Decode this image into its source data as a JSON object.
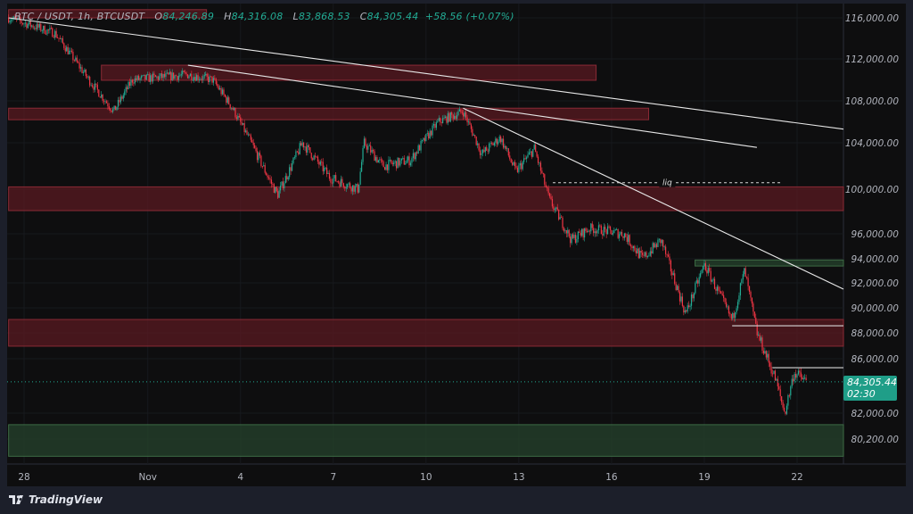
{
  "header": {
    "symbol": "BTC / USDT, 1h, BTCUSDT",
    "open_label": "O",
    "open": "84,246.89",
    "high_label": "H",
    "high": "84,316.08",
    "low_label": "L",
    "low": "83,868.53",
    "close_label": "C",
    "close": "84,305.44",
    "change": "+58.56 (+0.07%)"
  },
  "last_price": {
    "value": "84,305.44",
    "countdown": "02:30"
  },
  "brand": "TradingView",
  "colors": {
    "up": "#22ab94",
    "down": "#f23645",
    "zone_red": "#5a1a22",
    "zone_green": "#24402a",
    "tag": "#1f9e88"
  },
  "chart_data": {
    "type": "candlestick",
    "title": "BTC / USDT, 1h",
    "x_unit": "days since Oct 28",
    "x_ticks": [
      {
        "label": "28",
        "day": 0
      },
      {
        "label": "Nov",
        "day": 4
      },
      {
        "label": "4",
        "day": 7
      },
      {
        "label": "7",
        "day": 10
      },
      {
        "label": "10",
        "day": 13
      },
      {
        "label": "13",
        "day": 16
      },
      {
        "label": "16",
        "day": 19
      },
      {
        "label": "19",
        "day": 22
      },
      {
        "label": "22",
        "day": 25
      }
    ],
    "y_ticks": [
      {
        "label": "116,000.00",
        "v": 116000
      },
      {
        "label": "112,000.00",
        "v": 112000
      },
      {
        "label": "108,000.00",
        "v": 108000
      },
      {
        "label": "104,000.00",
        "v": 104000
      },
      {
        "label": "100,000.00",
        "v": 100000
      },
      {
        "label": "96,000.00",
        "v": 96000
      },
      {
        "label": "94,000.00",
        "v": 94000
      },
      {
        "label": "92,000.00",
        "v": 92000
      },
      {
        "label": "90,000.00",
        "v": 90000
      },
      {
        "label": "88,000.00",
        "v": 88000
      },
      {
        "label": "86,000.00",
        "v": 86000
      },
      {
        "label": "82,000.00",
        "v": 82000
      },
      {
        "label": "80,200.00",
        "v": 80200
      }
    ],
    "price_path": [
      [
        -0.5,
        116000
      ],
      [
        1.0,
        114500
      ],
      [
        2.1,
        110000
      ],
      [
        2.9,
        107000
      ],
      [
        3.5,
        110000
      ],
      [
        5.3,
        110500
      ],
      [
        6.1,
        110000
      ],
      [
        6.7,
        107500
      ],
      [
        7.9,
        101000
      ],
      [
        8.2,
        99500
      ],
      [
        9.0,
        104000
      ],
      [
        9.9,
        101000
      ],
      [
        10.8,
        100000
      ],
      [
        11.0,
        104000
      ],
      [
        11.6,
        102000
      ],
      [
        12.5,
        102500
      ],
      [
        13.4,
        106000
      ],
      [
        14.2,
        107000
      ],
      [
        14.8,
        103000
      ],
      [
        15.4,
        104500
      ],
      [
        15.9,
        101500
      ],
      [
        16.5,
        103500
      ],
      [
        17.0,
        99000
      ],
      [
        17.7,
        95500
      ],
      [
        18.3,
        96500
      ],
      [
        19.4,
        96000
      ],
      [
        20.0,
        94000
      ],
      [
        20.6,
        95500
      ],
      [
        21.4,
        89500
      ],
      [
        22.0,
        93500
      ],
      [
        22.9,
        89000
      ],
      [
        23.3,
        93000
      ],
      [
        23.7,
        88000
      ],
      [
        24.3,
        84500
      ],
      [
        24.6,
        82000
      ],
      [
        24.9,
        85000
      ],
      [
        25.3,
        84305
      ]
    ],
    "zones": [
      {
        "kind": "supply",
        "from": -0.5,
        "to": 5.9,
        "top": 116800,
        "bottom": 116000
      },
      {
        "kind": "supply",
        "from": 2.5,
        "to": 18.5,
        "top": 111400,
        "bottom": 109960
      },
      {
        "kind": "supply",
        "from": -0.5,
        "to": 20.2,
        "top": 107300,
        "bottom": 106200
      },
      {
        "kind": "supply",
        "from": -0.5,
        "to": 26.5,
        "top": 100200,
        "bottom": 98080
      },
      {
        "kind": "demand",
        "from": 21.7,
        "to": 26.5,
        "top": 93900,
        "bottom": 93400
      },
      {
        "kind": "supply",
        "from": -0.5,
        "to": 26.5,
        "top": 89070,
        "bottom": 86970
      },
      {
        "kind": "demand",
        "from": -0.5,
        "to": 26.5,
        "top": 81200,
        "bottom": 79000
      }
    ],
    "trendlines": [
      [
        [
          -0.5,
          116000
        ],
        [
          26.5,
          105300
        ]
      ],
      [
        [
          5.3,
          111400
        ],
        [
          23.7,
          103600
        ]
      ],
      [
        [
          14.2,
          107300
        ],
        [
          26.5,
          91500
        ]
      ]
    ],
    "levels": [
      {
        "from": 22.9,
        "to": 26.5,
        "v": 88570
      },
      {
        "from": 24.2,
        "to": 26.5,
        "v": 85340
      }
    ],
    "liq": {
      "label": "liq",
      "from": 17.1,
      "to": 24.5,
      "v": 100560
    },
    "last": 84305.44
  }
}
